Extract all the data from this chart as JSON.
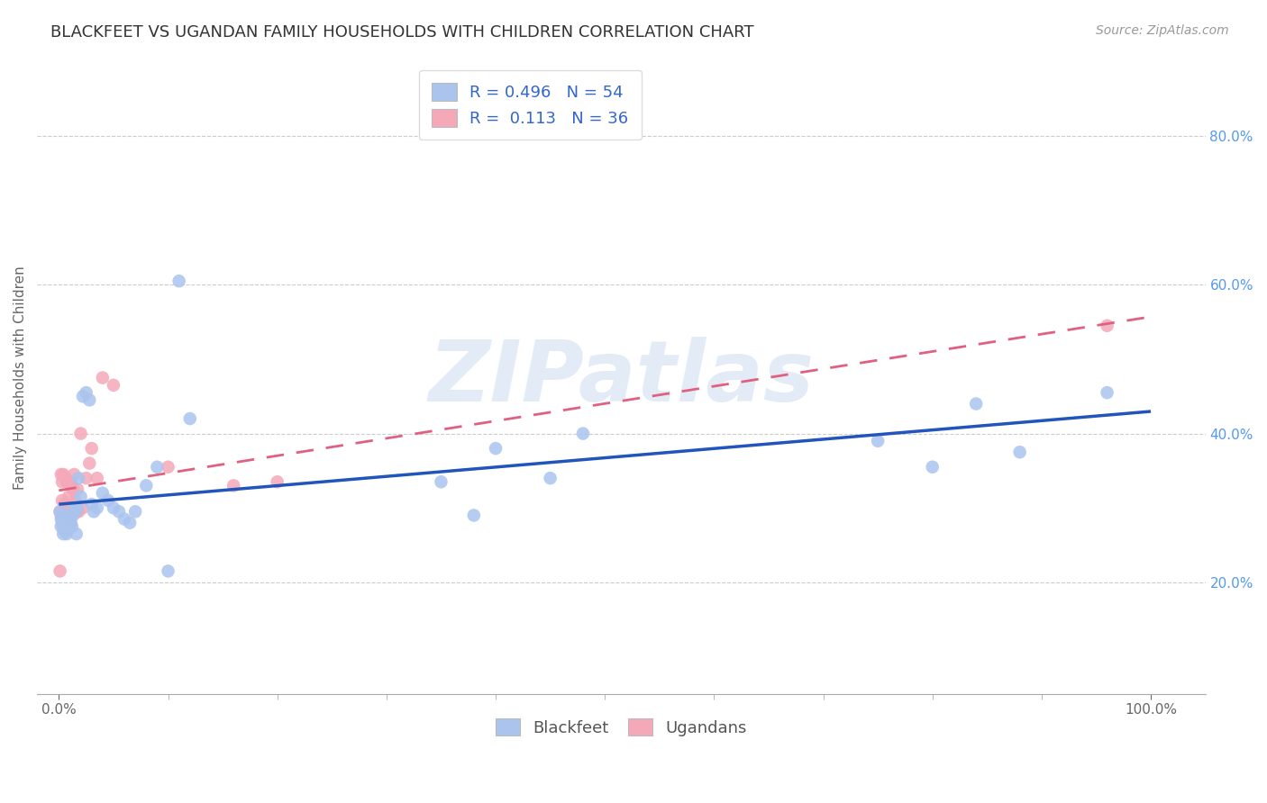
{
  "title": "BLACKFEET VS UGANDAN FAMILY HOUSEHOLDS WITH CHILDREN CORRELATION CHART",
  "source": "Source: ZipAtlas.com",
  "ylabel": "Family Households with Children",
  "watermark": "ZIPatlas",
  "blackfeet_R": 0.496,
  "blackfeet_N": 54,
  "ugandan_R": 0.113,
  "ugandan_N": 36,
  "blackfeet_color": "#aac4ee",
  "ugandan_color": "#f4a8b8",
  "blackfeet_line_color": "#2255bb",
  "ugandan_line_color": "#e06080",
  "blackfeet_x": [
    0.001,
    0.002,
    0.002,
    0.003,
    0.003,
    0.004,
    0.004,
    0.005,
    0.005,
    0.006,
    0.006,
    0.007,
    0.007,
    0.008,
    0.009,
    0.01,
    0.01,
    0.011,
    0.012,
    0.013,
    0.014,
    0.015,
    0.016,
    0.017,
    0.018,
    0.02,
    0.022,
    0.025,
    0.028,
    0.03,
    0.032,
    0.035,
    0.04,
    0.045,
    0.05,
    0.055,
    0.06,
    0.065,
    0.07,
    0.08,
    0.09,
    0.1,
    0.11,
    0.12,
    0.35,
    0.38,
    0.4,
    0.45,
    0.48,
    0.75,
    0.8,
    0.84,
    0.88,
    0.96
  ],
  "blackfeet_y": [
    0.295,
    0.285,
    0.275,
    0.29,
    0.28,
    0.275,
    0.265,
    0.28,
    0.27,
    0.285,
    0.275,
    0.265,
    0.275,
    0.27,
    0.28,
    0.29,
    0.275,
    0.28,
    0.275,
    0.29,
    0.3,
    0.295,
    0.265,
    0.3,
    0.34,
    0.315,
    0.45,
    0.455,
    0.445,
    0.305,
    0.295,
    0.3,
    0.32,
    0.31,
    0.3,
    0.295,
    0.285,
    0.28,
    0.295,
    0.33,
    0.355,
    0.215,
    0.605,
    0.42,
    0.335,
    0.29,
    0.38,
    0.34,
    0.4,
    0.39,
    0.355,
    0.44,
    0.375,
    0.455
  ],
  "ugandan_x": [
    0.001,
    0.001,
    0.002,
    0.002,
    0.003,
    0.003,
    0.004,
    0.004,
    0.005,
    0.005,
    0.006,
    0.007,
    0.007,
    0.008,
    0.009,
    0.01,
    0.011,
    0.012,
    0.013,
    0.014,
    0.015,
    0.016,
    0.017,
    0.018,
    0.02,
    0.022,
    0.025,
    0.028,
    0.03,
    0.035,
    0.04,
    0.05,
    0.1,
    0.16,
    0.2,
    0.96
  ],
  "ugandan_y": [
    0.295,
    0.215,
    0.29,
    0.345,
    0.31,
    0.335,
    0.285,
    0.345,
    0.305,
    0.27,
    0.34,
    0.335,
    0.295,
    0.335,
    0.315,
    0.28,
    0.335,
    0.33,
    0.325,
    0.345,
    0.31,
    0.295,
    0.325,
    0.295,
    0.4,
    0.3,
    0.34,
    0.36,
    0.38,
    0.34,
    0.475,
    0.465,
    0.355,
    0.33,
    0.335,
    0.545
  ],
  "xlim": [
    -0.02,
    1.05
  ],
  "ylim": [
    0.05,
    0.9
  ],
  "xticks": [
    0.0,
    1.0
  ],
  "xticklabels": [
    "0.0%",
    "100.0%"
  ],
  "yticks_right": [
    0.2,
    0.4,
    0.6,
    0.8
  ],
  "yticklabels_right": [
    "20.0%",
    "40.0%",
    "60.0%",
    "80.0%"
  ],
  "grid_color": "#cccccc",
  "background_color": "#ffffff",
  "title_fontsize": 13,
  "axis_label_fontsize": 11,
  "tick_fontsize": 11,
  "legend_fontsize": 13,
  "source_fontsize": 10
}
